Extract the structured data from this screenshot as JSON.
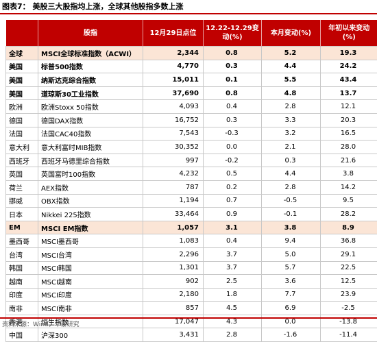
{
  "figure_title": "图表7：  美股三大股指均上涨，全球其他股指多数上涨",
  "table": {
    "headers": [
      "",
      "股指",
      "12月29日点位",
      "12.22-12.29变动(%)",
      "本月变动(%)",
      "年初以来变动(%)"
    ],
    "rows": [
      {
        "region": "全球",
        "name": "MSCI全球标准指数（ACWI）",
        "level": "2,344",
        "week": "0.8",
        "month": "5.2",
        "ytd": "19.3",
        "style": "hl"
      },
      {
        "region": "美国",
        "name": "标普500指数",
        "level": "4,770",
        "week": "0.3",
        "month": "4.4",
        "ytd": "24.2",
        "style": "bold"
      },
      {
        "region": "美国",
        "name": "纳斯达克综合指数",
        "level": "15,011",
        "week": "0.1",
        "month": "5.5",
        "ytd": "43.4",
        "style": "bold"
      },
      {
        "region": "美国",
        "name": "道琼斯30工业指数",
        "level": "37,690",
        "week": "0.8",
        "month": "4.8",
        "ytd": "13.7",
        "style": "bold"
      },
      {
        "region": "欧洲",
        "name": "欧洲Stoxx 50指数",
        "level": "4,093",
        "week": "0.4",
        "month": "2.8",
        "ytd": "12.1",
        "style": ""
      },
      {
        "region": "德国",
        "name": "德国DAX指数",
        "level": "16,752",
        "week": "0.3",
        "month": "3.3",
        "ytd": "20.3",
        "style": ""
      },
      {
        "region": "法国",
        "name": "法国CAC40指数",
        "level": "7,543",
        "week": "-0.3",
        "month": "3.2",
        "ytd": "16.5",
        "style": ""
      },
      {
        "region": "意大利",
        "name": "意大利富时MIB指数",
        "level": "30,352",
        "week": "0.0",
        "month": "2.1",
        "ytd": "28.0",
        "style": ""
      },
      {
        "region": "西班牙",
        "name": "西班牙马德里综合指数",
        "level": "997",
        "week": "-0.2",
        "month": "0.3",
        "ytd": "21.6",
        "style": ""
      },
      {
        "region": "英国",
        "name": "英国富时100指数",
        "level": "4,232",
        "week": "0.5",
        "month": "4.4",
        "ytd": "3.8",
        "style": ""
      },
      {
        "region": "荷兰",
        "name": "AEX指数",
        "level": "787",
        "week": "0.2",
        "month": "2.8",
        "ytd": "14.2",
        "style": ""
      },
      {
        "region": "挪威",
        "name": "OBX指数",
        "level": "1,194",
        "week": "0.7",
        "month": "-0.5",
        "ytd": "9.5",
        "style": ""
      },
      {
        "region": "日本",
        "name": "Nikkei 225指数",
        "level": "33,464",
        "week": "0.9",
        "month": "-0.1",
        "ytd": "28.2",
        "style": ""
      },
      {
        "region": "EM",
        "name": "MSCI EM指数",
        "level": "1,057",
        "week": "3.1",
        "month": "3.8",
        "ytd": "8.9",
        "style": "hl"
      },
      {
        "region": "墨西哥",
        "name": "MSCI墨西哥",
        "level": "1,083",
        "week": "0.4",
        "month": "9.4",
        "ytd": "36.8",
        "style": ""
      },
      {
        "region": "台湾",
        "name": "MSCI台湾",
        "level": "2,296",
        "week": "3.7",
        "month": "5.0",
        "ytd": "29.1",
        "style": ""
      },
      {
        "region": "韩国",
        "name": "MSCI韩国",
        "level": "1,301",
        "week": "3.7",
        "month": "5.7",
        "ytd": "22.5",
        "style": ""
      },
      {
        "region": "越南",
        "name": "MSCI越南",
        "level": "902",
        "week": "2.5",
        "month": "3.6",
        "ytd": "12.5",
        "style": ""
      },
      {
        "region": "印度",
        "name": "MSCI印度",
        "level": "2,180",
        "week": "1.8",
        "month": "7.7",
        "ytd": "23.9",
        "style": ""
      },
      {
        "region": "南非",
        "name": "MSCI南非",
        "level": "857",
        "week": "4.5",
        "month": "6.9",
        "ytd": "-2.5",
        "style": ""
      },
      {
        "region": "香港",
        "name": "恒生指数",
        "level": "17,047",
        "week": "4.3",
        "month": "0.0",
        "ytd": "-13.8",
        "style": ""
      },
      {
        "region": "中国",
        "name": "沪深300",
        "level": "3,431",
        "week": "2.8",
        "month": "-1.6",
        "ytd": "-11.4",
        "style": ""
      }
    ]
  },
  "source": "资料来源：Wind，华泰研究"
}
